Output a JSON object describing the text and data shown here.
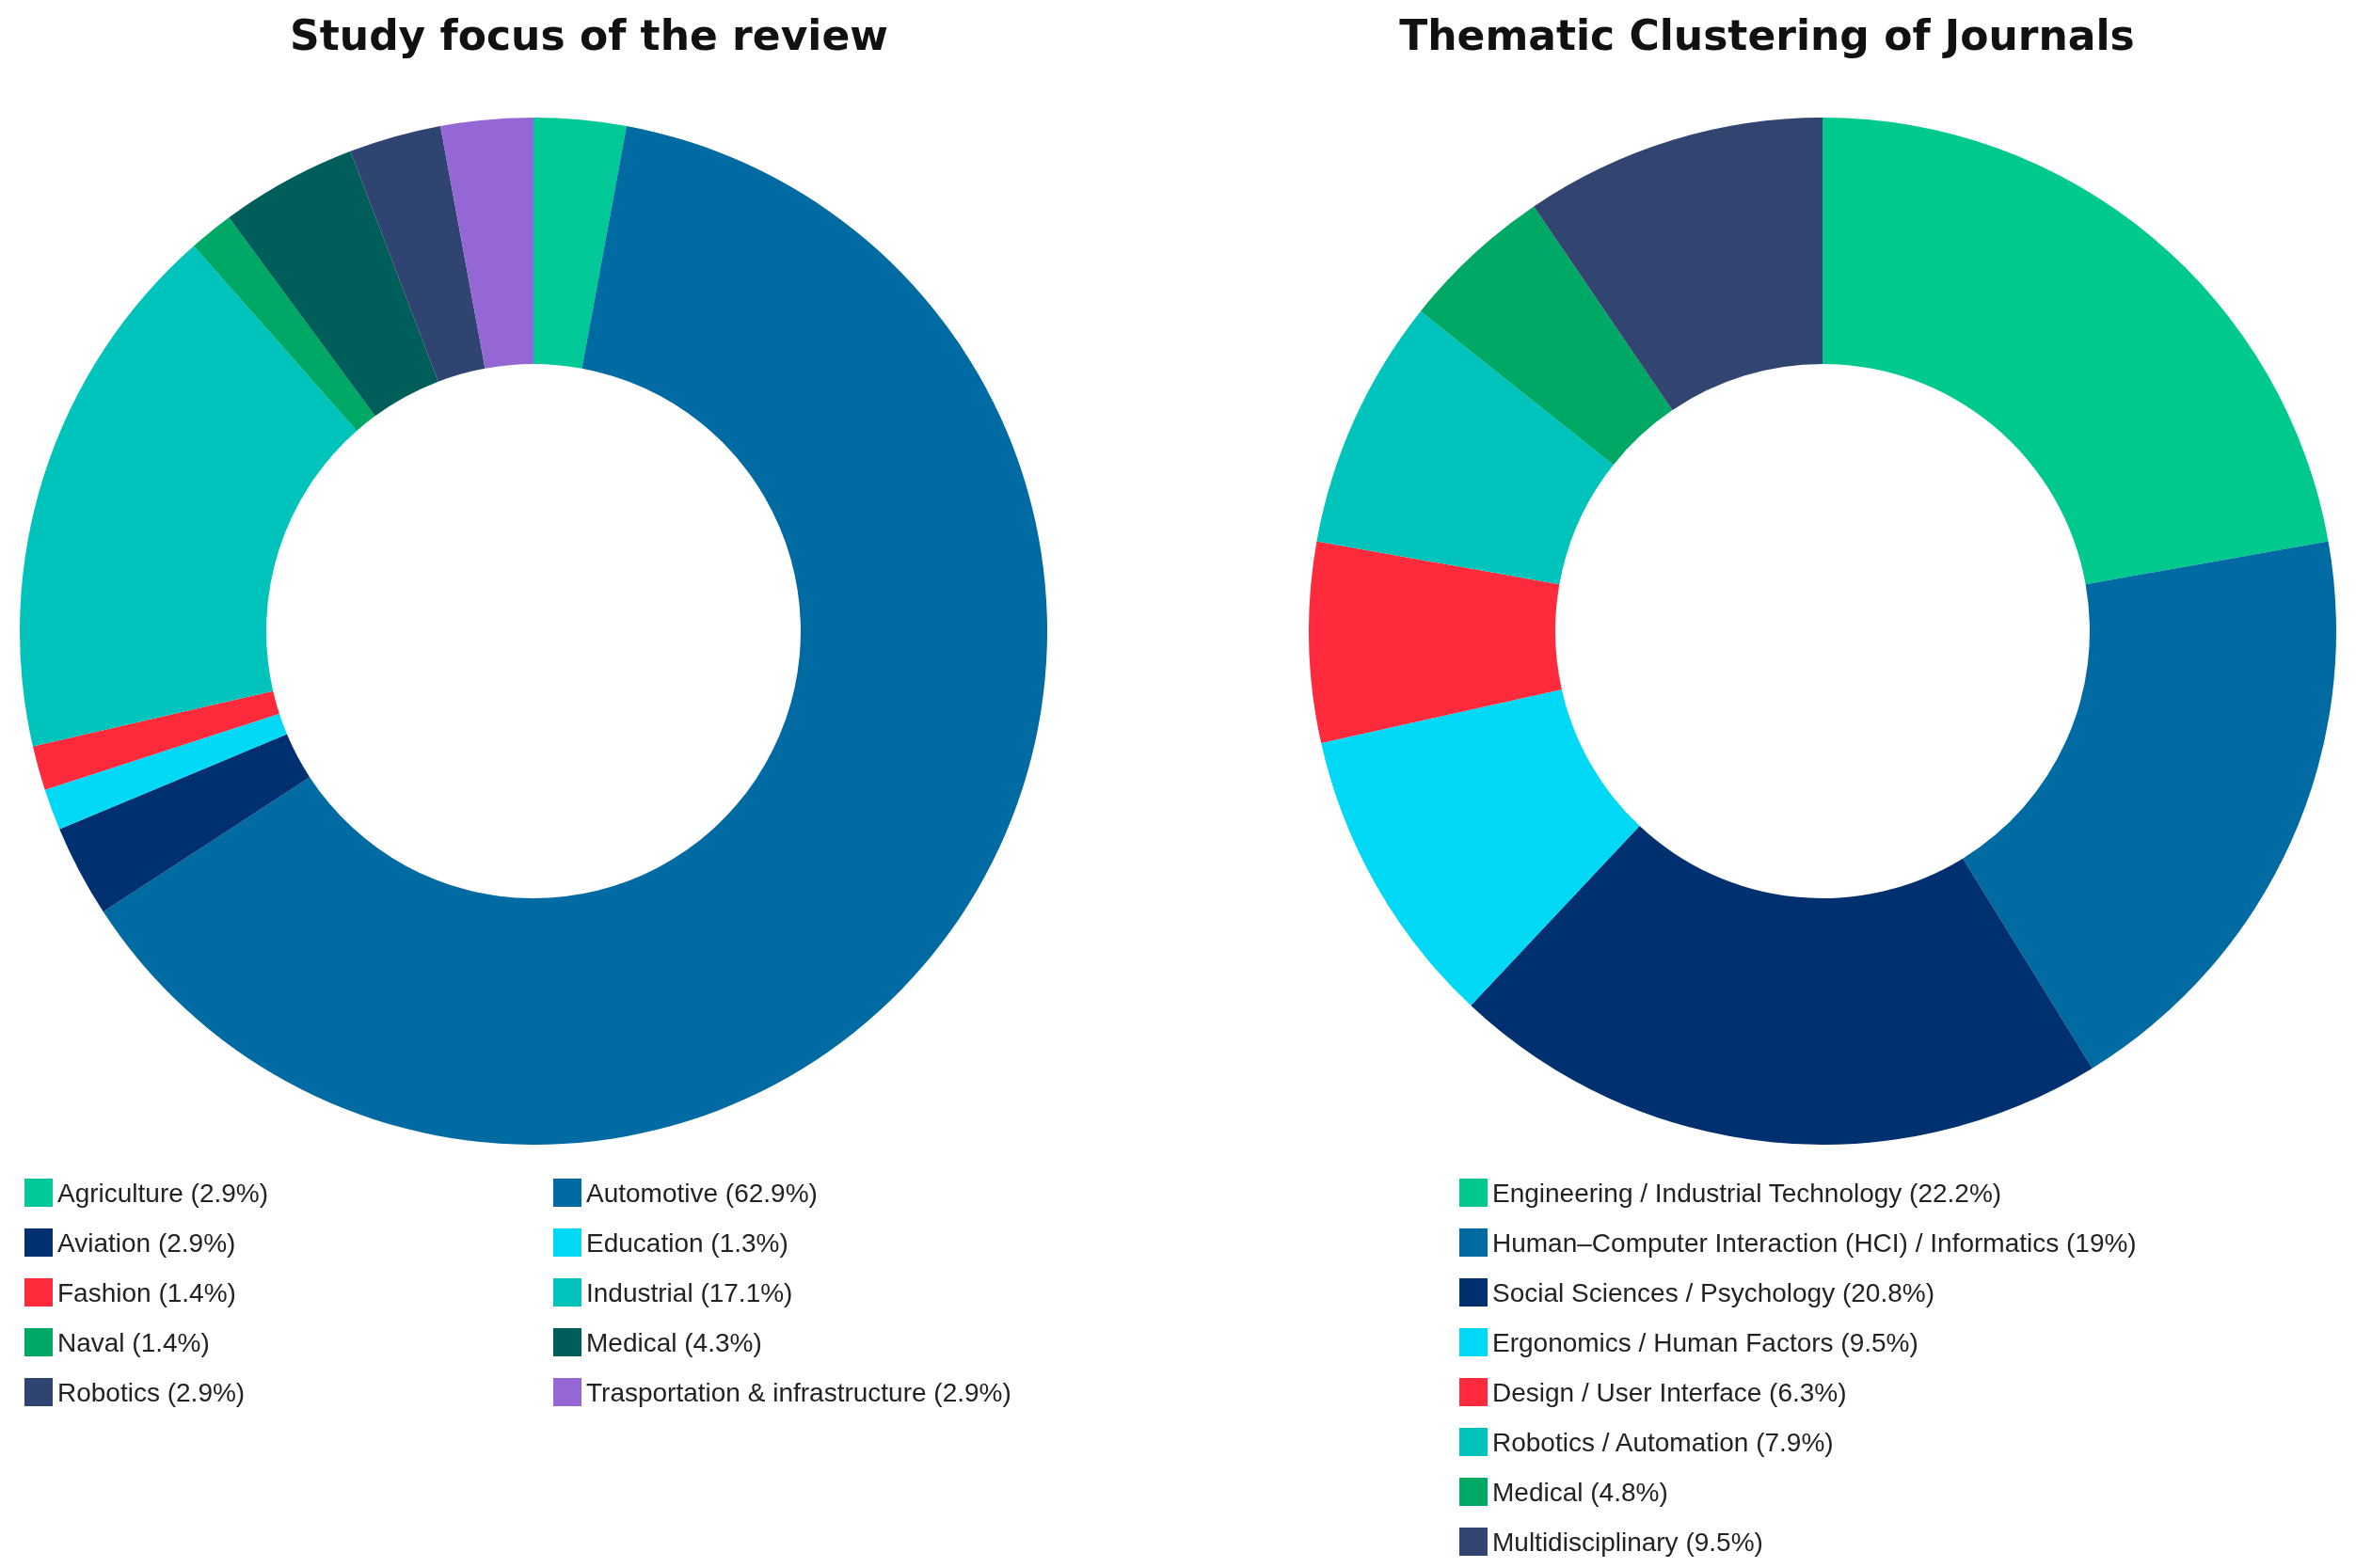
{
  "chart_data": [
    {
      "type": "donut",
      "title": "Study focus of the review",
      "legend": "bottom",
      "categories": [
        "Agriculture (2.9%)",
        "Automotive (62.9%)",
        "Aviation (2.9%)",
        "Education (1.3%)",
        "Fashion (1.4%)",
        "Industrial (17.1%)",
        "Naval (1.4%)",
        "Medical (4.3%)",
        "Robotics (2.9%)",
        "Trasportation & infrastructure (2.9%)"
      ],
      "values": [
        2.9,
        62.9,
        2.9,
        1.3,
        1.4,
        17.1,
        1.4,
        4.3,
        2.9,
        2.9
      ],
      "colors": [
        "#00c896",
        "#006aa3",
        "#003070",
        "#00d9f5",
        "#ff2a3c",
        "#00c4bc",
        "#00a865",
        "#005e5a",
        "#2f4470",
        "#9467d4"
      ]
    },
    {
      "type": "donut",
      "title": "Thematic Clustering of Journals",
      "legend": "bottom",
      "categories": [
        "Engineering / Industrial Technology (22.2%)",
        "Human–Computer Interaction (HCI) / Informatics (19%)",
        "Social Sciences / Psychology (20.8%)",
        "Ergonomics / Human Factors (9.5%)",
        "Design / User Interface (6.3%)",
        "Robotics / Automation (7.9%)",
        "Medical (4.8%)",
        "Multidisciplinary (9.5%)"
      ],
      "values": [
        22.2,
        19,
        20.8,
        9.5,
        6.3,
        7.9,
        4.8,
        9.5
      ],
      "colors": [
        "#00c98e",
        "#006aa3",
        "#00306f",
        "#00d9f5",
        "#ff2a3c",
        "#00c4bc",
        "#00a865",
        "#324470"
      ]
    }
  ]
}
